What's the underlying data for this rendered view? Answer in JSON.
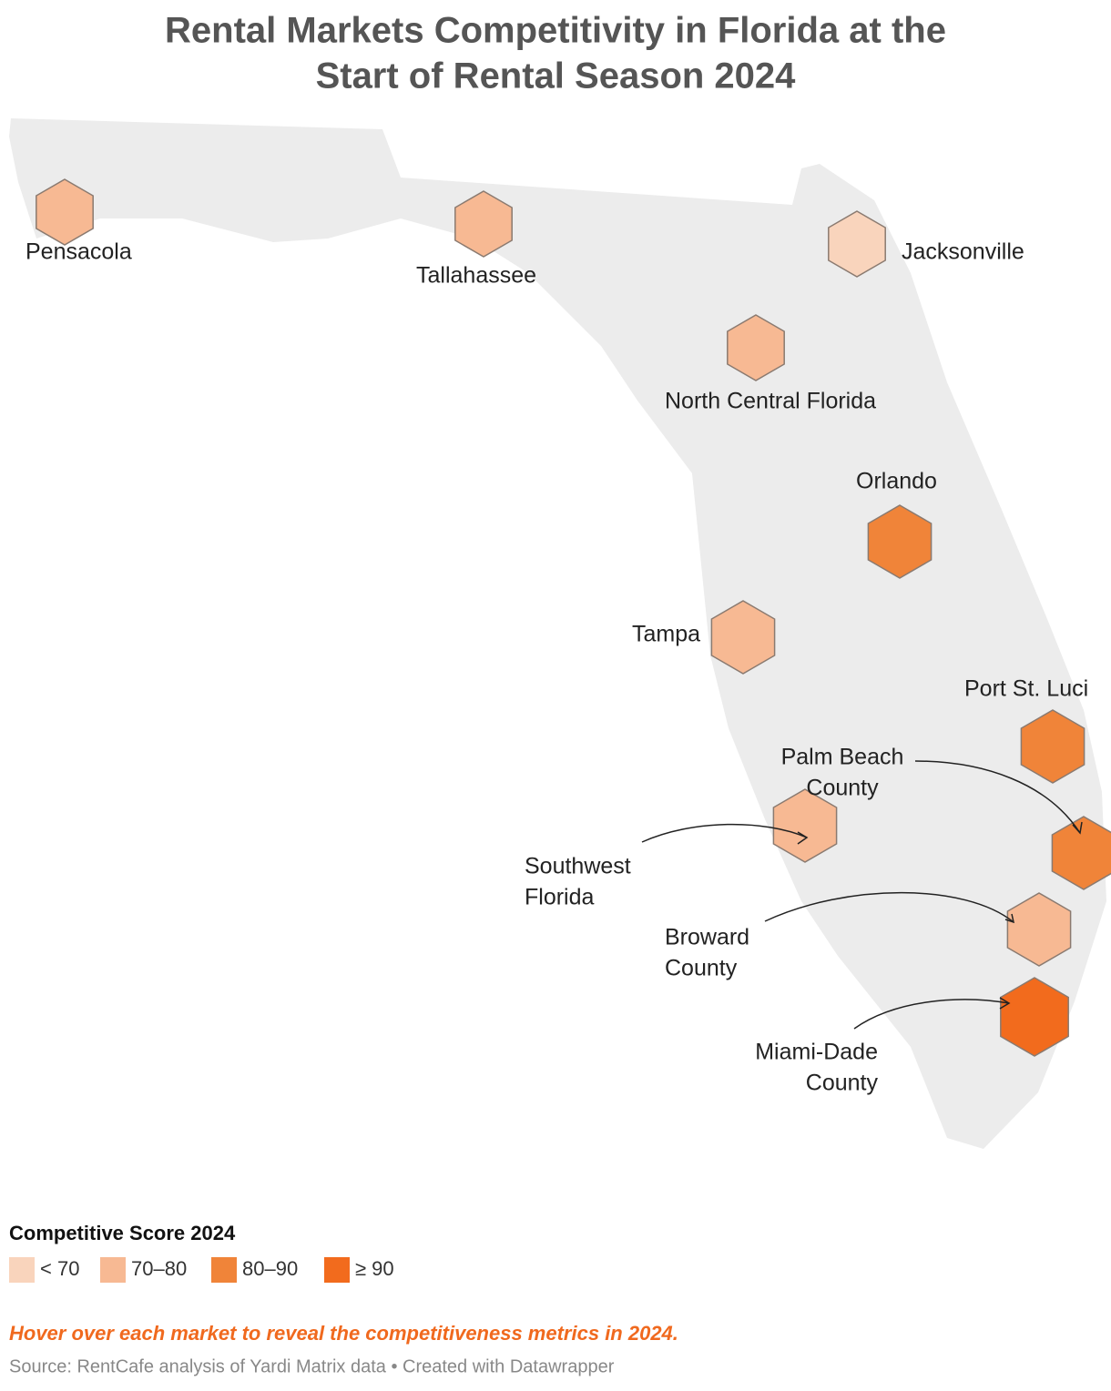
{
  "header": {
    "title_lines": [
      "Rental Markets Competitivity in Florida at the",
      "Start of Rental Season 2024"
    ]
  },
  "markets": [
    {
      "label": [
        "Pensacola"
      ],
      "color": "#f7b993"
    },
    {
      "label": [
        "Tallahassee"
      ],
      "color": "#f7b993"
    },
    {
      "label": [
        "Jacksonville"
      ],
      "color": "#f9d4bc"
    },
    {
      "label": [
        "North Central Florida"
      ],
      "color": "#f7b993"
    },
    {
      "label": [
        "Orlando"
      ],
      "color": "#f08439"
    },
    {
      "label": [
        "Tampa"
      ],
      "color": "#f7b993"
    },
    {
      "label": [
        "Port St. Luci"
      ],
      "color": "#f08439"
    },
    {
      "label": [
        "Palm Beach",
        "County"
      ],
      "color": "#f08439"
    },
    {
      "label": [
        "Southwest",
        "Florida"
      ],
      "color": "#f7b993"
    },
    {
      "label": [
        "Broward",
        "County"
      ],
      "color": "#f7b993"
    },
    {
      "label": [
        "Miami-Dade",
        "County"
      ],
      "color": "#f26b1d"
    }
  ],
  "legend": {
    "title": "Competitive Score 2024",
    "items": [
      {
        "label": "< 70",
        "color": "#f9d4bc"
      },
      {
        "label": "70–80",
        "color": "#f7b993"
      },
      {
        "label": "80–90",
        "color": "#f08439"
      },
      {
        "label": "≥ 90",
        "color": "#f26b1d"
      }
    ]
  },
  "note": "Hover over each market to reveal the competitiveness metrics in 2024.",
  "source": "Source: RentCafe analysis of Yardi Matrix data • Created with Datawrapper"
}
